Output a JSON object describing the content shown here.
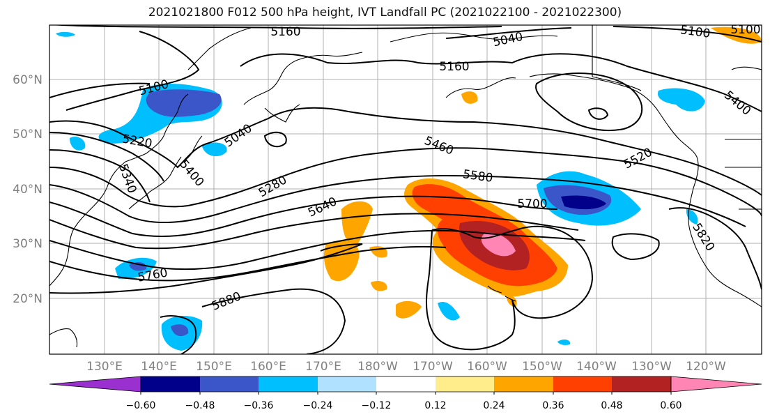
{
  "title": "2021021800 F012 500 hPa height, IVT Landfall PC (2021022100 - 2021022300)",
  "lat_labels": [
    "60°N",
    "50°N",
    "40°N",
    "30°N",
    "20°N"
  ],
  "lon_labels": [
    "130°E",
    "140°E",
    "150°E",
    "160°E",
    "170°E",
    "180°W",
    "170°W",
    "160°W",
    "150°W",
    "140°W",
    "130°W",
    "120°W"
  ],
  "contour_labels": [
    "5160",
    "5040",
    "5100",
    "5160",
    "5100",
    "5400",
    "5100",
    "5220",
    "5040",
    "5340",
    "5400",
    "5280",
    "5460",
    "5580",
    "5520",
    "5640",
    "5700",
    "5760",
    "5880",
    "5820"
  ],
  "colorbar": {
    "ticks": [
      "−0.60",
      "−0.48",
      "−0.36",
      "−0.24",
      "−0.12",
      "0.12",
      "0.24",
      "0.36",
      "0.48",
      "0.60"
    ],
    "colors": [
      "#9b30d0",
      "#00008b",
      "#3a56c9",
      "#00bfff",
      "#b0e2ff",
      "#ffffff",
      "#ffec8b",
      "#ffa500",
      "#ff4000",
      "#b22222",
      "#ff85b4"
    ]
  },
  "legend": {
    "neg_strong": "#00008b",
    "neg_mid": "#3a56c9",
    "neg_weak": "#00bfff",
    "pos_weak": "#ffa500",
    "pos_mid": "#ff4000",
    "pos_strong": "#b22222",
    "pos_max": "#ff85b4"
  }
}
